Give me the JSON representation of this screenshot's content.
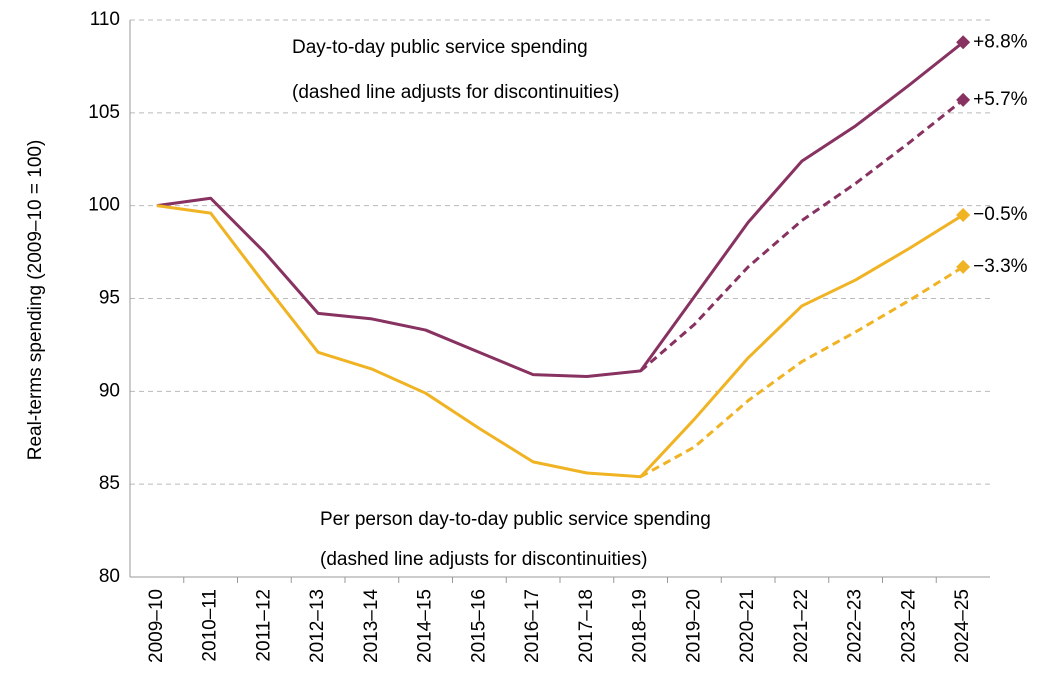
{
  "chart_data": {
    "type": "line",
    "y_label": "Real-terms spending (2009–10 = 100)",
    "annotations": [
      "Day-to-day public service spending",
      "(dashed line adjusts for discontinuities)",
      "Per person day-to-day public service spending",
      "(dashed line adjusts for discontinuities)"
    ],
    "categories": [
      "2009–10",
      "2010–11",
      "2011–12",
      "2012–13",
      "2013–14",
      "2014–15",
      "2015–16",
      "2016–17",
      "2017–18",
      "2018–19",
      "2019–20",
      "2020–21",
      "2021–22",
      "2022–23",
      "2023–24",
      "2024–25"
    ],
    "series": [
      {
        "color": "#873260",
        "style": "solid",
        "end_label": "+8.8%",
        "values": [
          100,
          100.4,
          97.5,
          94.2,
          93.9,
          93.3,
          92.1,
          90.9,
          90.8,
          91.1,
          95.1,
          99.1,
          102.4,
          104.3,
          106.5,
          108.8
        ]
      },
      {
        "color": "#873260",
        "style": "dashed",
        "end_label": "+5.7%",
        "values": [
          null,
          null,
          null,
          null,
          null,
          null,
          null,
          null,
          null,
          91.1,
          93.6,
          96.7,
          99.2,
          101.2,
          103.4,
          105.7
        ]
      },
      {
        "color": "#F0B323",
        "style": "solid",
        "end_label": "−0.5%",
        "values": [
          100,
          99.6,
          95.8,
          92.1,
          91.2,
          89.9,
          88.0,
          86.2,
          85.6,
          85.4,
          88.5,
          91.8,
          94.6,
          96.0,
          97.7,
          99.5
        ]
      },
      {
        "color": "#F0B323",
        "style": "dashed",
        "end_label": "−3.3%",
        "values": [
          null,
          null,
          null,
          null,
          null,
          null,
          null,
          null,
          null,
          85.4,
          87.0,
          89.5,
          91.6,
          93.2,
          94.9,
          96.7
        ]
      }
    ],
    "ylim": [
      80,
      110
    ],
    "yticks": [
      80,
      85,
      90,
      95,
      100,
      105,
      110
    ],
    "grid": true
  }
}
